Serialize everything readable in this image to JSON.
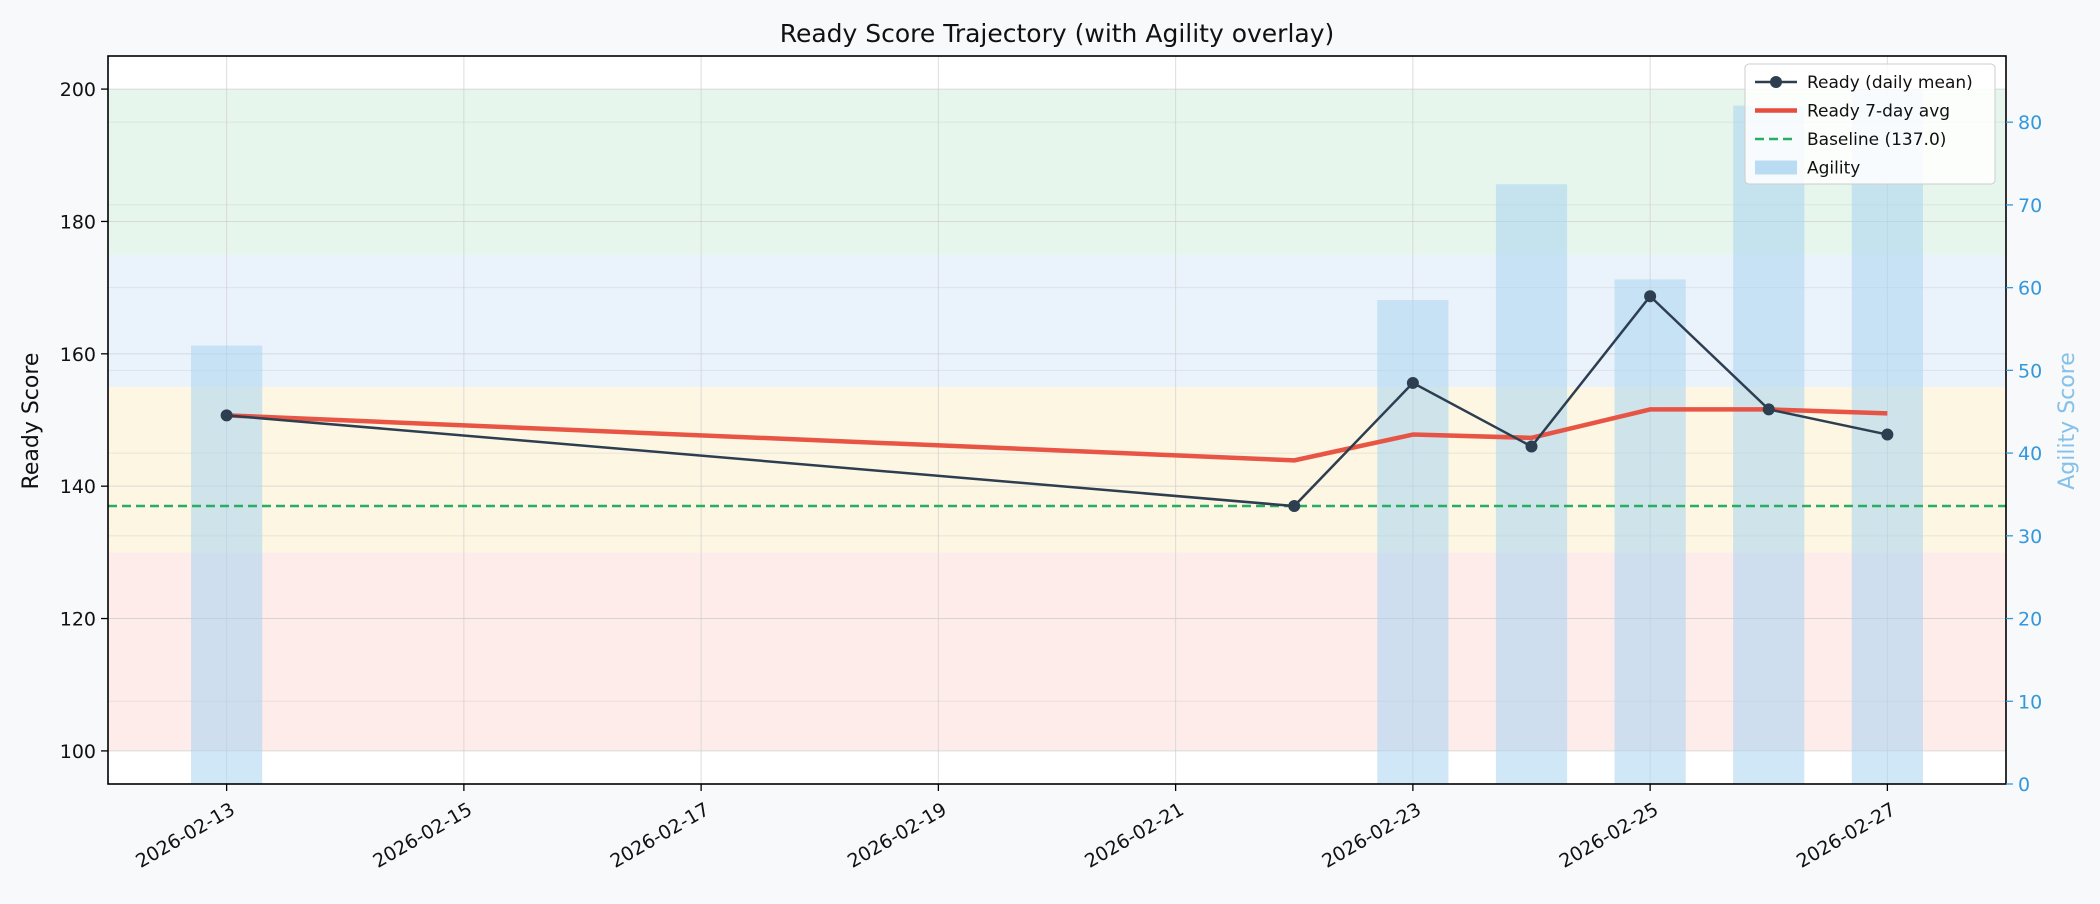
{
  "chart_data": {
    "type": "line",
    "title": "Ready Score Trajectory (with Agility overlay)",
    "ylabel": "Ready Score",
    "y2label": "Agility Score",
    "xlabel": "",
    "ylim": [
      95,
      205
    ],
    "y2lim": [
      0,
      88
    ],
    "xlim": [
      "2026-02-12",
      "2026-02-28"
    ],
    "yticks": [
      100,
      120,
      140,
      160,
      180,
      200
    ],
    "y2ticks": [
      0,
      10,
      20,
      30,
      40,
      50,
      60,
      70,
      80
    ],
    "xticks": [
      "2026-02-13",
      "2026-02-15",
      "2026-02-17",
      "2026-02-19",
      "2026-02-21",
      "2026-02-23",
      "2026-02-25",
      "2026-02-27"
    ],
    "grid": true,
    "legend_position": "top-right",
    "bands": [
      {
        "from": 100,
        "to": 130,
        "color": "#fdecea"
      },
      {
        "from": 130,
        "to": 155,
        "color": "#fdf6e3"
      },
      {
        "from": 155,
        "to": 175,
        "color": "#eaf2fb"
      },
      {
        "from": 175,
        "to": 200,
        "color": "#e6f6ec"
      }
    ],
    "series": [
      {
        "name": "Ready (daily mean)",
        "kind": "line-marker",
        "color": "#2c3e50",
        "x": [
          "2026-02-13",
          "2026-02-22",
          "2026-02-23",
          "2026-02-24",
          "2026-02-25",
          "2026-02-26",
          "2026-02-27"
        ],
        "values": [
          150.7,
          137.0,
          155.6,
          146.0,
          168.7,
          151.6,
          147.8
        ]
      },
      {
        "name": "Ready 7-day avg",
        "kind": "line",
        "color": "#e74c3c",
        "x": [
          "2026-02-13",
          "2026-02-22",
          "2026-02-23",
          "2026-02-24",
          "2026-02-25",
          "2026-02-26",
          "2026-02-27"
        ],
        "values": [
          150.7,
          143.9,
          147.8,
          147.3,
          151.6,
          151.6,
          151.0
        ]
      },
      {
        "name": "Baseline (137.0)",
        "kind": "hline",
        "color": "#27ae60",
        "value": 137.0
      },
      {
        "name": "Agility",
        "kind": "bar",
        "axis": "right",
        "color": "#a9d4f0",
        "x": [
          "2026-02-13",
          "2026-02-23",
          "2026-02-24",
          "2026-02-25",
          "2026-02-26",
          "2026-02-27"
        ],
        "values": [
          53,
          58.5,
          72.5,
          61,
          82,
          84
        ]
      }
    ]
  },
  "colors": {
    "axis_left": "#000000",
    "axis_right": "#3498db",
    "axis_right_label": "#85c1e9",
    "grid": "#cccccc"
  }
}
